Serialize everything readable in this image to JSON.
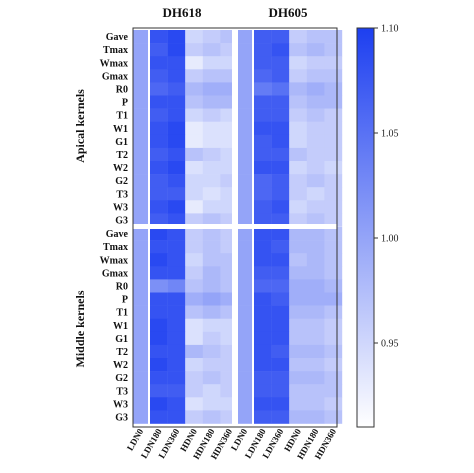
{
  "chart_data": {
    "type": "heatmap",
    "titles": [
      "DH618",
      "DH605"
    ],
    "group_labels": [
      "Apical kernels",
      "Middle kernels"
    ],
    "row_labels": [
      "Gave",
      "Tmax",
      "Wmax",
      "Gmax",
      "R0",
      "P",
      "T1",
      "W1",
      "G1",
      "T2",
      "W2",
      "G2",
      "T3",
      "W3",
      "G3"
    ],
    "column_labels": [
      "LDN0",
      "LDN180",
      "LDN360",
      "HDN0",
      "HDN180",
      "HDN360"
    ],
    "colorbar": {
      "min": 0.91,
      "max": 1.1,
      "ticks": [
        "0.95",
        "1.00",
        "1.05",
        "1.10"
      ],
      "low_color": "#ffffff",
      "high_color": "#1d3ff0"
    },
    "blocks": [
      {
        "title": "DH618",
        "group": "Apical kernels",
        "values": [
          [
            1.0,
            1.08,
            1.09,
            0.95,
            0.96,
            0.97
          ],
          [
            1.0,
            1.07,
            1.09,
            0.96,
            0.97,
            0.96
          ],
          [
            1.0,
            1.08,
            1.08,
            0.93,
            0.95,
            0.95
          ],
          [
            1.0,
            1.07,
            1.08,
            0.96,
            0.97,
            0.97
          ],
          [
            1.0,
            1.06,
            1.07,
            0.98,
            0.99,
            0.99
          ],
          [
            1.0,
            1.08,
            1.08,
            0.97,
            0.98,
            0.98
          ],
          [
            1.0,
            1.07,
            1.08,
            0.95,
            0.96,
            0.95
          ],
          [
            1.0,
            1.08,
            1.09,
            0.93,
            0.94,
            0.94
          ],
          [
            1.0,
            1.08,
            1.09,
            0.93,
            0.94,
            0.94
          ],
          [
            1.0,
            1.07,
            1.08,
            0.97,
            0.96,
            0.95
          ],
          [
            1.0,
            1.08,
            1.09,
            0.94,
            0.95,
            0.95
          ],
          [
            1.0,
            1.07,
            1.08,
            0.95,
            0.95,
            0.96
          ],
          [
            1.0,
            1.07,
            1.07,
            0.95,
            0.94,
            0.95
          ],
          [
            1.0,
            1.08,
            1.09,
            0.93,
            0.95,
            0.95
          ],
          [
            1.0,
            1.07,
            1.08,
            0.96,
            0.97,
            0.96
          ]
        ]
      },
      {
        "title": "DH605",
        "group": "Apical kernels",
        "values": [
          [
            1.0,
            1.07,
            1.07,
            0.96,
            0.97,
            0.97
          ],
          [
            1.0,
            1.07,
            1.08,
            0.97,
            0.98,
            0.97
          ],
          [
            1.0,
            1.07,
            1.07,
            0.95,
            0.96,
            0.96
          ],
          [
            1.0,
            1.06,
            1.07,
            0.96,
            0.97,
            0.97
          ],
          [
            1.0,
            1.04,
            1.05,
            0.98,
            0.99,
            0.98
          ],
          [
            1.0,
            1.07,
            1.07,
            0.97,
            0.98,
            0.98
          ],
          [
            1.0,
            1.07,
            1.07,
            0.96,
            0.97,
            0.96
          ],
          [
            1.0,
            1.08,
            1.08,
            0.95,
            0.96,
            0.96
          ],
          [
            1.0,
            1.07,
            1.08,
            0.95,
            0.96,
            0.96
          ],
          [
            1.0,
            1.07,
            1.07,
            0.97,
            0.96,
            0.96
          ],
          [
            1.0,
            1.08,
            1.08,
            0.95,
            0.96,
            0.95
          ],
          [
            1.0,
            1.06,
            1.07,
            0.96,
            0.97,
            0.96
          ],
          [
            1.0,
            1.06,
            1.07,
            0.96,
            0.95,
            0.96
          ],
          [
            1.0,
            1.07,
            1.08,
            0.95,
            0.96,
            0.96
          ],
          [
            1.0,
            1.07,
            1.07,
            0.96,
            0.97,
            0.96
          ]
        ]
      },
      {
        "title": "DH618",
        "group": "Middle kernels",
        "values": [
          [
            1.0,
            1.09,
            1.08,
            0.96,
            0.97,
            0.96
          ],
          [
            1.0,
            1.08,
            1.08,
            0.96,
            0.97,
            0.96
          ],
          [
            1.0,
            1.09,
            1.08,
            0.95,
            0.97,
            0.97
          ],
          [
            1.0,
            1.08,
            1.08,
            0.96,
            0.98,
            0.97
          ],
          [
            1.0,
            1.02,
            1.03,
            0.97,
            0.98,
            0.97
          ],
          [
            1.0,
            1.08,
            1.08,
            0.99,
            1.0,
            0.99
          ],
          [
            1.0,
            1.08,
            1.08,
            0.97,
            0.98,
            0.97
          ],
          [
            1.0,
            1.09,
            1.08,
            0.94,
            0.95,
            0.95
          ],
          [
            1.0,
            1.09,
            1.08,
            0.94,
            0.96,
            0.95
          ],
          [
            1.0,
            1.08,
            1.08,
            0.98,
            0.97,
            0.96
          ],
          [
            1.0,
            1.09,
            1.08,
            0.95,
            0.96,
            0.96
          ],
          [
            1.0,
            1.08,
            1.08,
            0.96,
            0.97,
            0.96
          ],
          [
            1.0,
            1.07,
            1.07,
            0.96,
            0.95,
            0.96
          ],
          [
            1.0,
            1.09,
            1.08,
            0.94,
            0.95,
            0.95
          ],
          [
            1.0,
            1.08,
            1.08,
            0.96,
            0.97,
            0.96
          ]
        ]
      },
      {
        "title": "DH605",
        "group": "Middle kernels",
        "values": [
          [
            1.0,
            1.08,
            1.08,
            0.98,
            0.98,
            0.97
          ],
          [
            1.0,
            1.08,
            1.07,
            0.98,
            0.98,
            0.97
          ],
          [
            1.0,
            1.08,
            1.08,
            0.97,
            0.98,
            0.97
          ],
          [
            1.0,
            1.07,
            1.07,
            0.98,
            0.98,
            0.97
          ],
          [
            1.0,
            1.06,
            1.06,
            0.99,
            0.99,
            0.98
          ],
          [
            1.0,
            1.08,
            1.07,
            0.99,
            0.99,
            0.99
          ],
          [
            1.0,
            1.08,
            1.08,
            0.98,
            0.98,
            0.97
          ],
          [
            1.0,
            1.08,
            1.08,
            0.97,
            0.97,
            0.96
          ],
          [
            1.0,
            1.08,
            1.08,
            0.97,
            0.97,
            0.96
          ],
          [
            1.0,
            1.08,
            1.07,
            0.98,
            0.98,
            0.97
          ],
          [
            1.0,
            1.08,
            1.08,
            0.97,
            0.97,
            0.96
          ],
          [
            1.0,
            1.07,
            1.07,
            0.98,
            0.98,
            0.97
          ],
          [
            1.0,
            1.07,
            1.07,
            0.97,
            0.97,
            0.97
          ],
          [
            1.0,
            1.08,
            1.08,
            0.97,
            0.97,
            0.96
          ],
          [
            1.0,
            1.07,
            1.07,
            0.98,
            0.98,
            0.97
          ]
        ]
      }
    ]
  }
}
